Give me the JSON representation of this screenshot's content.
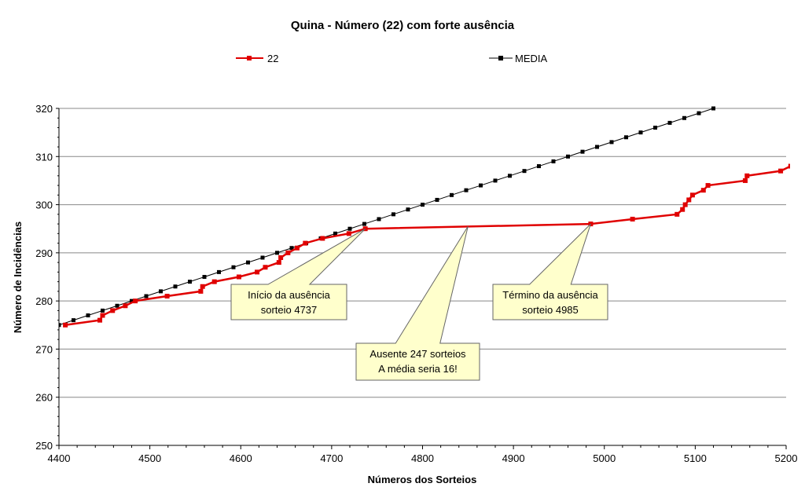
{
  "chart_data": {
    "type": "line",
    "title": "Quina - Número (22)  com forte ausência",
    "xlabel": "Números dos Sorteios",
    "ylabel": "Número de Incidências",
    "xlim": [
      4400,
      5200
    ],
    "ylim": [
      250,
      320
    ],
    "xticks": [
      4400,
      4500,
      4600,
      4700,
      4800,
      4900,
      5000,
      5100,
      5200
    ],
    "yticks": [
      250,
      260,
      270,
      280,
      290,
      300,
      310,
      320
    ],
    "grid": "horizontal",
    "legend_position": "top",
    "series": [
      {
        "name": "22",
        "color": "#e00000",
        "points": [
          [
            4407,
            275
          ],
          [
            4445,
            276
          ],
          [
            4448,
            277
          ],
          [
            4459,
            278
          ],
          [
            4473,
            279
          ],
          [
            4484,
            280
          ],
          [
            4519,
            281
          ],
          [
            4556,
            282
          ],
          [
            4558,
            283
          ],
          [
            4571,
            284
          ],
          [
            4598,
            285
          ],
          [
            4618,
            286
          ],
          [
            4627,
            287
          ],
          [
            4642,
            288
          ],
          [
            4644,
            289
          ],
          [
            4652,
            290
          ],
          [
            4662,
            291
          ],
          [
            4671,
            292
          ],
          [
            4690,
            293
          ],
          [
            4719,
            294
          ],
          [
            4737,
            295
          ],
          [
            4985,
            296
          ],
          [
            5031,
            297
          ],
          [
            5080,
            298
          ],
          [
            5086,
            299
          ],
          [
            5089,
            300
          ],
          [
            5093,
            301
          ],
          [
            5097,
            302
          ],
          [
            5109,
            303
          ],
          [
            5114,
            304
          ],
          [
            5155,
            305
          ],
          [
            5157,
            306
          ],
          [
            5194,
            307
          ],
          [
            5205,
            308
          ]
        ]
      },
      {
        "name": "MEDIA",
        "color": "#000000",
        "points": [
          [
            4400,
            275
          ],
          [
            4416,
            276
          ],
          [
            4432,
            277
          ],
          [
            4448,
            278
          ],
          [
            4464,
            279
          ],
          [
            4480,
            280
          ],
          [
            4496,
            281
          ],
          [
            4512,
            282
          ],
          [
            4528,
            283
          ],
          [
            4544,
            284
          ],
          [
            4560,
            285
          ],
          [
            4576,
            286
          ],
          [
            4592,
            287
          ],
          [
            4608,
            288
          ],
          [
            4624,
            289
          ],
          [
            4640,
            290
          ],
          [
            4656,
            291
          ],
          [
            4672,
            292
          ],
          [
            4688,
            293
          ],
          [
            4704,
            294
          ],
          [
            4720,
            295
          ],
          [
            4736,
            296
          ],
          [
            4752,
            297
          ],
          [
            4768,
            298
          ],
          [
            4784,
            299
          ],
          [
            4800,
            300
          ],
          [
            4816,
            301
          ],
          [
            4832,
            302
          ],
          [
            4848,
            303
          ],
          [
            4864,
            304
          ],
          [
            4880,
            305
          ],
          [
            4896,
            306
          ],
          [
            4912,
            307
          ],
          [
            4928,
            308
          ],
          [
            4944,
            309
          ],
          [
            4960,
            310
          ],
          [
            4976,
            311
          ],
          [
            4992,
            312
          ],
          [
            5008,
            313
          ],
          [
            5024,
            314
          ],
          [
            5040,
            315
          ],
          [
            5056,
            316
          ],
          [
            5072,
            317
          ],
          [
            5088,
            318
          ],
          [
            5104,
            319
          ],
          [
            5120,
            320
          ]
        ]
      }
    ],
    "annotations": [
      {
        "lines": [
          "Início da ausência",
          "sorteio  4737"
        ],
        "target": [
          4737,
          295
        ]
      },
      {
        "lines": [
          "Ausente 247 sorteios",
          "A média seria 16!"
        ],
        "target": [
          4850,
          295.5
        ]
      },
      {
        "lines": [
          "Término da ausência",
          "sorteio  4985"
        ],
        "target": [
          4985,
          296
        ]
      }
    ]
  }
}
